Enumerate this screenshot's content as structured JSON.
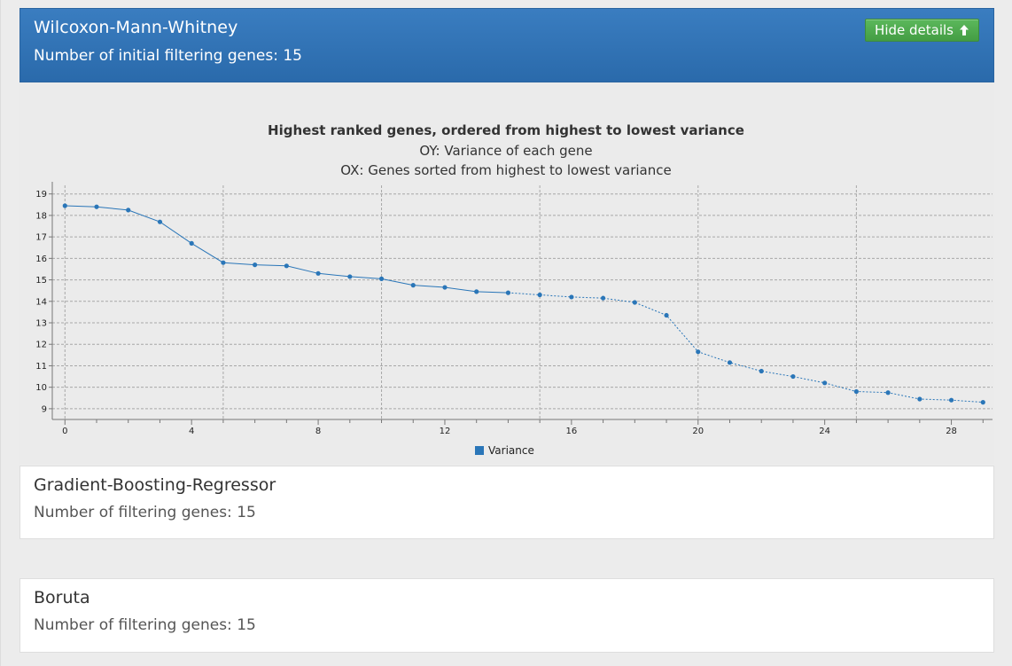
{
  "panels": [
    {
      "title": "Wilcoxon-Mann-Whitney",
      "subtitle": "Number of initial filtering genes: 15",
      "button_label": "Hide details"
    },
    {
      "title": "Gradient-Boosting-Regressor",
      "subtitle": "Number of filtering genes: 15"
    },
    {
      "title": "Boruta",
      "subtitle": "Number of filtering genes: 15"
    }
  ],
  "colors": {
    "header_blue": "#2f74b8",
    "button_green": "#4cae4c",
    "series_blue": "#2a76b8"
  },
  "icons": {
    "hide_button_icon": "arrow-up-icon"
  },
  "chart_data": {
    "type": "line",
    "title": "Highest ranked genes, ordered from highest to lowest variance",
    "subtitle_y": "OY: Variance of each gene",
    "subtitle_x": "OX: Genes sorted from highest to lowest variance",
    "legend": "Variance",
    "legend_position": "bottom-center",
    "grid": true,
    "x": [
      0,
      1,
      2,
      3,
      4,
      5,
      6,
      7,
      8,
      9,
      10,
      11,
      12,
      13,
      14,
      15,
      16,
      17,
      18,
      19,
      20,
      21,
      22,
      23,
      24,
      25,
      26,
      27,
      28,
      29
    ],
    "values": [
      18.45,
      18.4,
      18.25,
      17.7,
      16.7,
      15.8,
      15.7,
      15.65,
      15.3,
      15.15,
      15.05,
      14.75,
      14.65,
      14.45,
      14.4,
      14.3,
      14.2,
      14.15,
      13.95,
      13.35,
      11.65,
      11.15,
      10.75,
      10.5,
      10.2,
      9.8,
      9.75,
      9.45,
      9.4,
      9.3
    ],
    "x_ticks": [
      "0",
      "4",
      "8",
      "12",
      "16",
      "20",
      "24",
      "28"
    ],
    "y_ticks": [
      "9",
      "10",
      "11",
      "12",
      "13",
      "14",
      "15",
      "16",
      "17",
      "18",
      "19"
    ],
    "xlim": [
      -0.4,
      29.3
    ],
    "ylim": [
      8.5,
      19.4
    ]
  }
}
